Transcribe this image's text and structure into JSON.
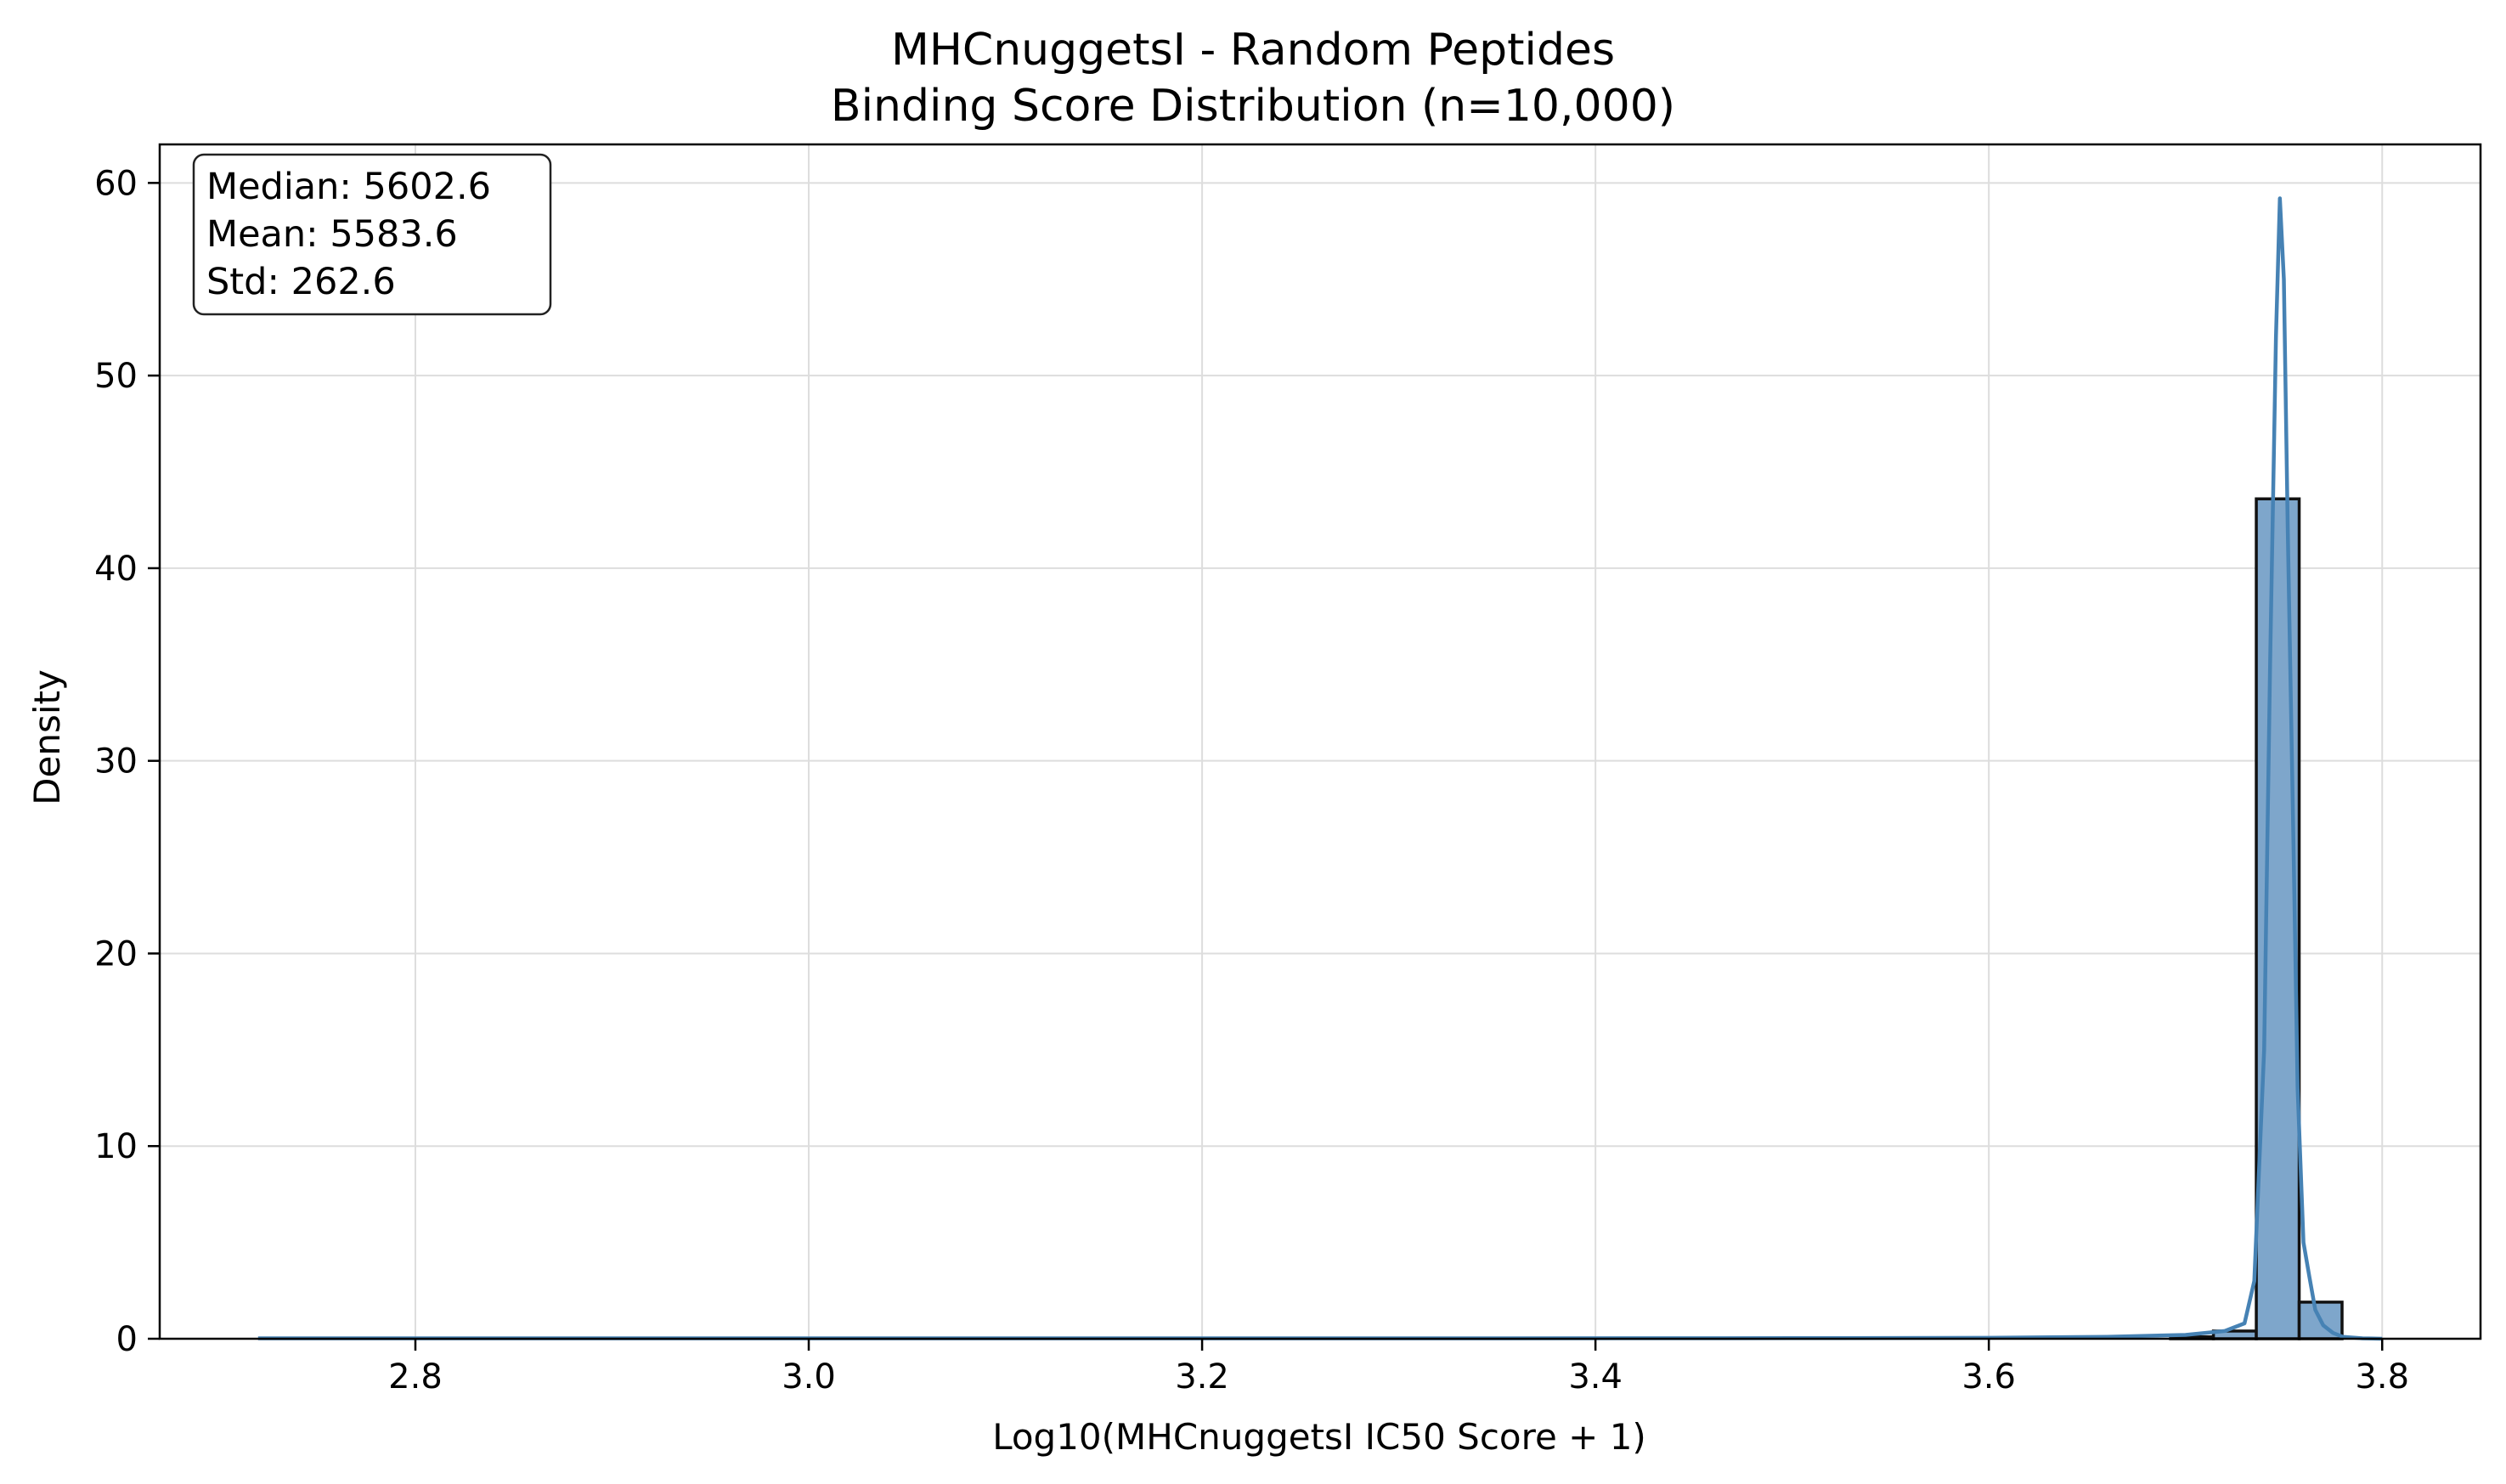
{
  "chart_data": {
    "type": "histogram",
    "title": "MHCnuggetsI - Random Peptides",
    "subtitle": "Binding Score Distribution (n=10,000)",
    "xlabel": "Log10(MHCnuggetsI IC50 Score + 1)",
    "ylabel": "Density",
    "xlim": [
      2.67,
      3.85
    ],
    "ylim": [
      0,
      62
    ],
    "xticks": [
      2.8,
      3.0,
      3.2,
      3.4,
      3.6,
      3.8
    ],
    "yticks": [
      0,
      10,
      20,
      30,
      40,
      50,
      60
    ],
    "xtick_labels": [
      "2.8",
      "3.0",
      "3.2",
      "3.4",
      "3.6",
      "3.8"
    ],
    "ytick_labels": [
      "0",
      "10",
      "20",
      "30",
      "40",
      "50",
      "60"
    ],
    "grid": true,
    "bar_color": "#7ea6cb",
    "bar_edge_color": "#111111",
    "kde_color": "#4682b4",
    "bins": [
      {
        "x0": 3.6924,
        "x1": 3.7142,
        "density": 0.1
      },
      {
        "x0": 3.7142,
        "x1": 3.736,
        "density": 0.4
      },
      {
        "x0": 3.736,
        "x1": 3.7578,
        "density": 43.6
      },
      {
        "x0": 3.7578,
        "x1": 3.7796,
        "density": 1.9
      }
    ],
    "kde": [
      [
        2.72,
        0.02
      ],
      [
        2.9,
        0.02
      ],
      [
        3.1,
        0.02
      ],
      [
        3.3,
        0.02
      ],
      [
        3.5,
        0.03
      ],
      [
        3.6,
        0.05
      ],
      [
        3.66,
        0.1
      ],
      [
        3.7,
        0.2
      ],
      [
        3.72,
        0.4
      ],
      [
        3.73,
        0.8
      ],
      [
        3.735,
        3.0
      ],
      [
        3.74,
        15.0
      ],
      [
        3.743,
        35.0
      ],
      [
        3.746,
        52.0
      ],
      [
        3.748,
        59.2
      ],
      [
        3.75,
        55.0
      ],
      [
        3.752,
        42.0
      ],
      [
        3.755,
        25.0
      ],
      [
        3.757,
        13.0
      ],
      [
        3.76,
        5.0
      ],
      [
        3.763,
        3.2
      ],
      [
        3.766,
        1.5
      ],
      [
        3.77,
        0.7
      ],
      [
        3.775,
        0.3
      ],
      [
        3.78,
        0.1
      ],
      [
        3.79,
        0.02
      ],
      [
        3.8,
        0.0
      ]
    ],
    "stats_box": {
      "median": "Median: 5602.6",
      "mean": "Mean: 5583.6",
      "std": "Std: 262.6"
    }
  }
}
